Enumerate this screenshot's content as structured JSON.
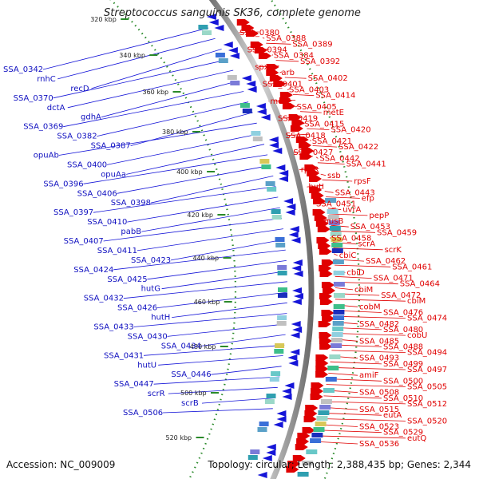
{
  "title": "Streptococcus sanguinis SK36, complete genome",
  "footer": {
    "accession": "Accession: NC_009009",
    "topology": "Topology: circular; Length: 2,388,435 bp; Genes: 2,344"
  },
  "colors": {
    "forward_strand": "#e00000",
    "reverse_strand": "#1515d8",
    "backbone": "#888888",
    "tick_dots": "#2a8a2a"
  },
  "kbp_ticks": [
    "320 kbp",
    "340 kbp",
    "360 kbp",
    "380 kbp",
    "400 kbp",
    "420 kbp",
    "440 kbp",
    "460 kbp",
    "480 kbp",
    "500 kbp",
    "520 kbp"
  ],
  "forward_labels": [
    "SSA_0380",
    "SSA_0388",
    "SSA_0389",
    "SSA_0394",
    "SSA_0384",
    "SSA_0392",
    "spxB",
    "arb",
    "SSA_0402",
    "SSA_0401",
    "SSA_0403",
    "SSA_0414",
    "metF",
    "SSA_0405",
    "metE",
    "SSA_0419",
    "SSA_0415",
    "SSA_0420",
    "SSA_0418",
    "SSA_0421",
    "SSA_0422",
    "SSA_0427",
    "SSA_0442",
    "SSA_0441",
    "rpsR",
    "ssb",
    "rpsF",
    "hutI",
    "SSA_0443",
    "efp",
    "SSA_0451",
    "uvrA",
    "pepP",
    "nusB",
    "SSA_0453",
    "SSA_0459",
    "SSA_0458",
    "scrA",
    "scrK",
    "cbiC",
    "SSA_0462",
    "SSA_0461",
    "cbiD",
    "SSA_0471",
    "SSA_0464",
    "cbiM",
    "SSA_0472",
    "cbiM",
    "cobM",
    "SSA_0476",
    "SSA_0474",
    "SSA_0482",
    "SSA_0480",
    "cobU",
    "SSA_0485",
    "SSA_0488",
    "SSA_0494",
    "SSA_0493",
    "SSA_0499",
    "SSA_0497",
    "amiF",
    "SSA_0500",
    "SSA_0505",
    "SSA_0508",
    "SSA_0510",
    "SSA_0512",
    "SSA_0515",
    "eutA",
    "SSA_0520",
    "SSA_0523",
    "SSA_0529",
    "eutQ",
    "SSA_0536"
  ],
  "reverse_labels": [
    "SSA_0342",
    "rnhC",
    "recD",
    "SSA_0370",
    "dctA",
    "gdhA",
    "SSA_0369",
    "SSA_0382",
    "SSA_0387",
    "opuAb",
    "SSA_0400",
    "opuAa",
    "SSA_0396",
    "SSA_0406",
    "SSA_0398",
    "SSA_0397",
    "SSA_0410",
    "pabB",
    "SSA_0407",
    "SSA_0411",
    "SSA_0423",
    "SSA_0424",
    "SSA_0425",
    "hutG",
    "SSA_0432",
    "SSA_0426",
    "hutH",
    "SSA_0433",
    "SSA_0430",
    "SSA_0434",
    "SSA_0431",
    "hutU",
    "SSA_0446",
    "SSA_0447",
    "scrR",
    "scrB",
    "SSA_0506"
  ]
}
